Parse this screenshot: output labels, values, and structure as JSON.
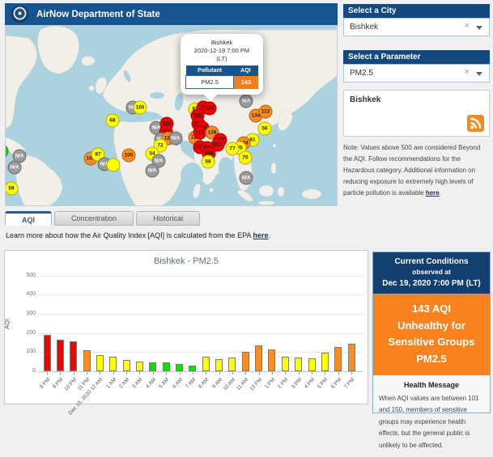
{
  "header": {
    "title": "AirNow Department of State"
  },
  "city_panel": {
    "header": "Select a City",
    "value": "Bishkek"
  },
  "param_panel": {
    "header": "Select a Parameter",
    "value": "PM2.5"
  },
  "feed": {
    "label": "Bishkek"
  },
  "note": {
    "prefix": "Note: Values above 500 are considered Beyond the AQI. Follow recommendations for the Hazardous category. Additional information on reducing exposure to extremely high levels of particle pollution is available ",
    "link": "here",
    "suffix": "."
  },
  "tabs": [
    {
      "label": "AQI",
      "active": true
    },
    {
      "label": "Concentration",
      "active": false
    },
    {
      "label": "Historical",
      "active": false
    }
  ],
  "learn_more": {
    "prefix": "Learn more about how the Air Quality Index [AQI] is calculated from the EPA ",
    "link": "here",
    "suffix": "."
  },
  "map": {
    "popup": {
      "city": "Bishkek",
      "datetime": "2020-12-19 7:00 PM",
      "lt": "(LT)",
      "col_pollutant": "Pollutant",
      "col_aqi": "AQI",
      "pollutant": "PM2.5",
      "aqi": "143"
    },
    "markers": [
      {
        "x": -5,
        "y": 155,
        "label": "",
        "level": "good"
      },
      {
        "x": 17,
        "y": 161,
        "label": "N/A",
        "level": "na"
      },
      {
        "x": 11,
        "y": 175,
        "label": "N/A",
        "level": "na"
      },
      {
        "x": 7,
        "y": 201,
        "label": "59",
        "level": "moderate"
      },
      {
        "x": 105,
        "y": 164,
        "label": "103",
        "level": "usg"
      },
      {
        "x": 114,
        "y": 159,
        "label": "87",
        "level": "moderate"
      },
      {
        "x": 122,
        "y": 171,
        "label": "N/A",
        "level": "na"
      },
      {
        "x": 133,
        "y": 172,
        "label": "",
        "level": "moderate"
      },
      {
        "x": 132,
        "y": 117,
        "label": "68",
        "level": "moderate"
      },
      {
        "x": 157,
        "y": 101,
        "label": "N/A",
        "level": "na"
      },
      {
        "x": 166,
        "y": 101,
        "label": "100",
        "level": "moderate"
      },
      {
        "x": 186,
        "y": 126,
        "label": "N/A",
        "level": "na"
      },
      {
        "x": 199,
        "y": 121,
        "label": "158",
        "level": "unhealthy"
      },
      {
        "x": 198,
        "y": 131,
        "label": "156",
        "level": "unhealthy"
      },
      {
        "x": 192,
        "y": 140,
        "label": "N/A",
        "level": "na"
      },
      {
        "x": 201,
        "y": 139,
        "label": "110",
        "level": "usg"
      },
      {
        "x": 210,
        "y": 139,
        "label": "N/A",
        "level": "na"
      },
      {
        "x": 191,
        "y": 148,
        "label": "72",
        "level": "moderate"
      },
      {
        "x": 181,
        "y": 158,
        "label": "54",
        "level": "moderate"
      },
      {
        "x": 152,
        "y": 160,
        "label": "105",
        "level": "usg"
      },
      {
        "x": 189,
        "y": 167,
        "label": "N/A",
        "level": "na"
      },
      {
        "x": 181,
        "y": 179,
        "label": "N/A",
        "level": "na"
      },
      {
        "x": 234,
        "y": 138,
        "label": "129",
        "level": "usg"
      },
      {
        "x": 234,
        "y": 103,
        "label": "97",
        "level": "moderate"
      },
      {
        "x": 244,
        "y": 101,
        "label": "171",
        "level": "unhealthy"
      },
      {
        "x": 252,
        "y": 102,
        "label": "169",
        "level": "unhealthy"
      },
      {
        "x": 237,
        "y": 111,
        "label": "155",
        "level": "unhealthy"
      },
      {
        "x": 238,
        "y": 121,
        "label": "213",
        "level": "unhealthy"
      },
      {
        "x": 243,
        "y": 126,
        "label": "194",
        "level": "unhealthy"
      },
      {
        "x": 240,
        "y": 132,
        "label": "172",
        "level": "unhealthy"
      },
      {
        "x": 255,
        "y": 132,
        "label": "138",
        "level": "usg"
      },
      {
        "x": 265,
        "y": 141,
        "label": "187",
        "level": "unhealthy"
      },
      {
        "x": 262,
        "y": 147,
        "label": "217",
        "level": "unhealthy"
      },
      {
        "x": 240,
        "y": 150,
        "label": "151",
        "level": "unhealthy"
      },
      {
        "x": 249,
        "y": 151,
        "label": "157",
        "level": "unhealthy"
      },
      {
        "x": 251,
        "y": 158,
        "label": "168",
        "level": "unhealthy"
      },
      {
        "x": 250,
        "y": 168,
        "label": "58",
        "level": "moderate"
      },
      {
        "x": 297,
        "y": 93,
        "label": "N/A",
        "level": "na"
      },
      {
        "x": 309,
        "y": 111,
        "label": "134",
        "level": "usg"
      },
      {
        "x": 321,
        "y": 106,
        "label": "112",
        "level": "usg"
      },
      {
        "x": 320,
        "y": 127,
        "label": "56",
        "level": "moderate"
      },
      {
        "x": 305,
        "y": 141,
        "label": "81",
        "level": "moderate"
      },
      {
        "x": 294,
        "y": 145,
        "label": "144",
        "level": "usg"
      },
      {
        "x": 289,
        "y": 151,
        "label": "95",
        "level": "moderate"
      },
      {
        "x": 280,
        "y": 152,
        "label": "77",
        "level": "moderate"
      },
      {
        "x": 296,
        "y": 163,
        "label": "70",
        "level": "moderate"
      },
      {
        "x": 297,
        "y": 188,
        "label": "N/A",
        "level": "na"
      }
    ]
  },
  "chart_data": {
    "type": "bar",
    "title": "Bishkek - PM2.5",
    "xlabel": "",
    "ylabel": "AQI",
    "ylim": [
      0,
      500
    ],
    "yticks": [
      0,
      100,
      200,
      300,
      400,
      500
    ],
    "grid": true,
    "legend": false,
    "categories": [
      "8 PM",
      "9 PM",
      "10 PM",
      "11 PM",
      "Dec 19, 2020 12 AM",
      "1 AM",
      "2 AM",
      "3 AM",
      "4 AM",
      "5 AM",
      "6 AM",
      "7 AM",
      "8 AM",
      "9 AM",
      "10 AM",
      "11 AM",
      "12 PM",
      "1 PM",
      "2 PM",
      "3 PM",
      "4 PM",
      "5 PM",
      "6 PM",
      "7 PM"
    ],
    "values": [
      190,
      165,
      155,
      110,
      85,
      75,
      58,
      52,
      45,
      45,
      40,
      28,
      75,
      65,
      70,
      102,
      135,
      112,
      78,
      72,
      68,
      98,
      125,
      143
    ],
    "color_rule": "AQI breakpoints: <=50 green, <=100 yellow, <=150 orange, <=200 red"
  },
  "current_conditions": {
    "title": "Current Conditions",
    "observed": "observed at",
    "datetime": "Dec 19, 2020 7:00 PM (LT)",
    "aqi_line": "143 AQI",
    "category": "Unhealthy for Sensitive Groups",
    "pollutant": "PM2.5",
    "health_title": "Health Message",
    "health_text": "When AQI values are between 101 and 150, members of sensitive groups may experience health effects, but the general public is unlikely to be affected."
  },
  "colors": {
    "good": "#00e400",
    "moderate": "#ffff00",
    "usg": "#ff8c1f",
    "unhealthy": "#f40000",
    "na": "#9b9b9b",
    "header_blue": "#17538f",
    "panel_blue": "#14497f",
    "cc_blue": "#123e70",
    "aqi_orange": "#f8821d"
  }
}
